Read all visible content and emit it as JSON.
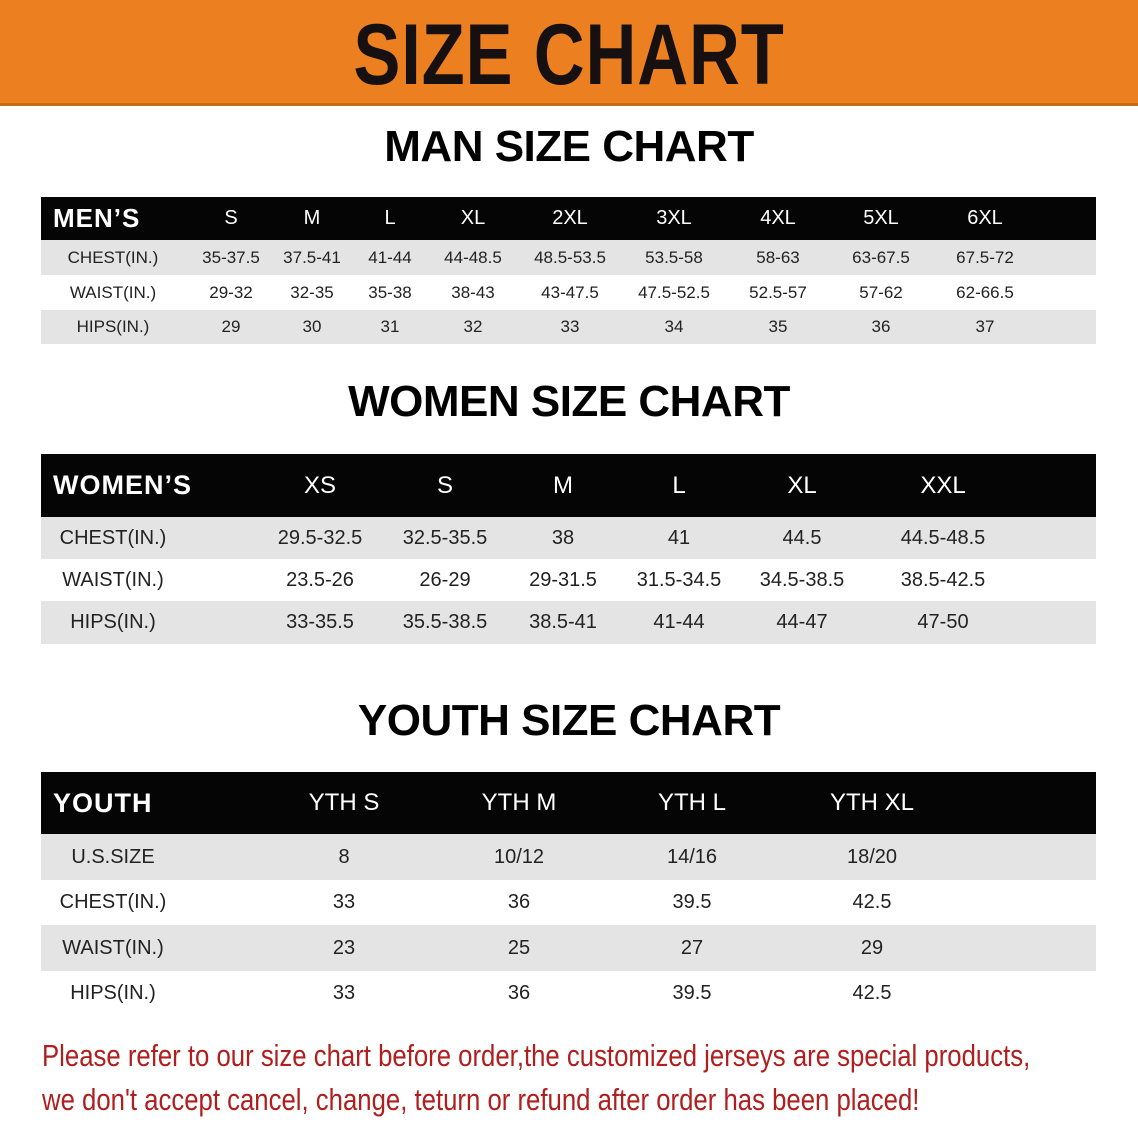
{
  "banner": {
    "title": "SIZE CHART",
    "color": "#ec8020"
  },
  "men": {
    "heading": "MAN SIZE CHART",
    "header_label": "MEN’S",
    "sizes": [
      "S",
      "M",
      "L",
      "XL",
      "2XL",
      "3XL",
      "4XL",
      "5XL",
      "6XL"
    ],
    "rows": [
      {
        "label": "CHEST(IN.)",
        "values": [
          "35-37.5",
          "37.5-41",
          "41-44",
          "44-48.5",
          "48.5-53.5",
          "53.5-58",
          "58-63",
          "63-67.5",
          "67.5-72"
        ]
      },
      {
        "label": "WAIST(IN.)",
        "values": [
          "29-32",
          "32-35",
          "35-38",
          "38-43",
          "43-47.5",
          "47.5-52.5",
          "52.5-57",
          "57-62",
          "62-66.5"
        ]
      },
      {
        "label": "HIPS(IN.)",
        "values": [
          "29",
          "30",
          "31",
          "32",
          "33",
          "34",
          "35",
          "36",
          "37"
        ]
      }
    ]
  },
  "women": {
    "heading": "WOMEN SIZE CHART",
    "header_label": "WOMEN’S",
    "sizes": [
      "XS",
      "S",
      "M",
      "L",
      "XL",
      "XXL"
    ],
    "rows": [
      {
        "label": "CHEST(IN.)",
        "values": [
          "29.5-32.5",
          "32.5-35.5",
          "38",
          "41",
          "44.5",
          "44.5-48.5"
        ]
      },
      {
        "label": "WAIST(IN.)",
        "values": [
          "23.5-26",
          "26-29",
          "29-31.5",
          "31.5-34.5",
          "34.5-38.5",
          "38.5-42.5"
        ]
      },
      {
        "label": "HIPS(IN.)",
        "values": [
          "33-35.5",
          "35.5-38.5",
          "38.5-41",
          "41-44",
          "44-47",
          "47-50"
        ]
      }
    ]
  },
  "youth": {
    "heading": "YOUTH SIZE CHART",
    "header_label": "YOUTH",
    "sizes": [
      "YTH S",
      "YTH M",
      "YTH L",
      "YTH XL"
    ],
    "rows": [
      {
        "label": "U.S.SIZE",
        "values": [
          "8",
          "10/12",
          "14/16",
          "18/20"
        ]
      },
      {
        "label": "CHEST(IN.)",
        "values": [
          "33",
          "36",
          "39.5",
          "42.5"
        ]
      },
      {
        "label": "WAIST(IN.)",
        "values": [
          "23",
          "25",
          "27",
          "29"
        ]
      },
      {
        "label": "HIPS(IN.)",
        "values": [
          "33",
          "36",
          "39.5",
          "42.5"
        ]
      }
    ]
  },
  "notice": {
    "line1": "Please refer to our size chart before order,the customized jerseys are special products,",
    "line2": "we don't accept cancel, change, teturn or refund after order has been placed!",
    "color": "#b01e1e"
  }
}
